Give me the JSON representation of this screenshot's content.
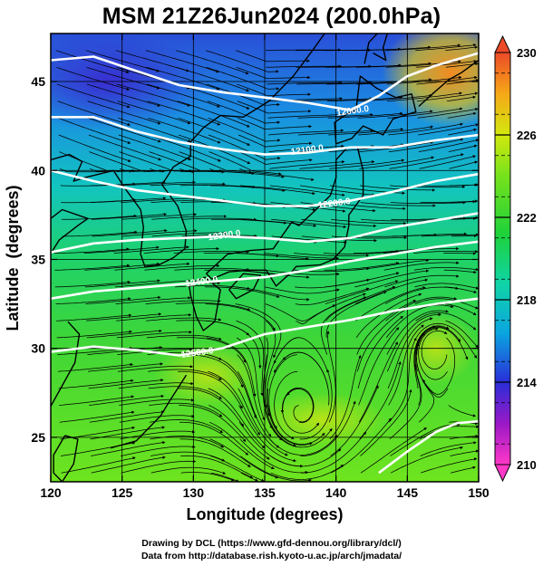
{
  "title": "MSM 21Z26Jun2024 (200.0hPa)",
  "x_axis": {
    "label": "Longitude (degrees)",
    "range": [
      120,
      150
    ],
    "ticks": [
      120,
      125,
      130,
      135,
      140,
      145,
      150
    ]
  },
  "y_axis": {
    "label": "Latitude  (degrees)",
    "range": [
      22.5,
      47.7
    ],
    "ticks": [
      25,
      30,
      35,
      40,
      45
    ]
  },
  "colorbar": {
    "range": [
      210,
      230
    ],
    "ticks": [
      210,
      214,
      218,
      222,
      226,
      230
    ],
    "colors": [
      "#ff38c8",
      "#9a18c6",
      "#2a2ed8",
      "#0aa6e0",
      "#10d4a6",
      "#1ed23a",
      "#76e21c",
      "#d2e80e",
      "#f6a818",
      "#ec4a28"
    ]
  },
  "contours": {
    "color": "#ffffff",
    "labels": [
      {
        "text": "12000.0",
        "lon": 141.2,
        "lat": 43.2
      },
      {
        "text": "12100.0",
        "lon": 138.0,
        "lat": 41.0
      },
      {
        "text": "12200.0",
        "lon": 139.9,
        "lat": 38.0
      },
      {
        "text": "12300.0",
        "lon": 132.2,
        "lat": 36.2
      },
      {
        "text": "12400.0",
        "lon": 130.6,
        "lat": 33.6
      },
      {
        "text": "12500.0",
        "lon": 130.3,
        "lat": 29.6
      }
    ],
    "lines": [
      [
        [
          120,
          46.2
        ],
        [
          123,
          46.4
        ],
        [
          126,
          45.6
        ],
        [
          129,
          44.8
        ],
        [
          132,
          44.4
        ],
        [
          135,
          44.1
        ],
        [
          138,
          43.8
        ],
        [
          141,
          43.4
        ],
        [
          143,
          44.2
        ],
        [
          145,
          45.3
        ],
        [
          147,
          45.9
        ],
        [
          150,
          46.6
        ]
      ],
      [
        [
          120,
          43.0
        ],
        [
          123,
          43.0
        ],
        [
          126,
          42.2
        ],
        [
          129,
          41.6
        ],
        [
          132,
          41.2
        ],
        [
          135,
          40.9
        ],
        [
          138,
          41.0
        ],
        [
          141,
          41.3
        ],
        [
          144,
          41.3
        ],
        [
          147,
          41.7
        ],
        [
          150,
          42.0
        ]
      ],
      [
        [
          120,
          40.0
        ],
        [
          123,
          39.4
        ],
        [
          126,
          38.9
        ],
        [
          129,
          38.6
        ],
        [
          132,
          38.3
        ],
        [
          135,
          38.0
        ],
        [
          138,
          38.0
        ],
        [
          141,
          38.3
        ],
        [
          144,
          38.8
        ],
        [
          147,
          39.4
        ],
        [
          150,
          39.8
        ]
      ],
      [
        [
          120,
          35.4
        ],
        [
          123,
          35.9
        ],
        [
          126,
          36.1
        ],
        [
          129,
          36.2
        ],
        [
          132,
          36.3
        ],
        [
          135,
          36.2
        ],
        [
          138,
          36.0
        ],
        [
          141,
          36.2
        ],
        [
          144,
          36.8
        ],
        [
          147,
          37.2
        ],
        [
          150,
          37.6
        ]
      ],
      [
        [
          120,
          32.8
        ],
        [
          123,
          33.2
        ],
        [
          126,
          33.4
        ],
        [
          129,
          33.6
        ],
        [
          132,
          33.8
        ],
        [
          135,
          34.0
        ],
        [
          138,
          34.4
        ],
        [
          141,
          34.9
        ],
        [
          144,
          35.3
        ],
        [
          147,
          35.7
        ],
        [
          150,
          36.0
        ]
      ],
      [
        [
          120,
          29.8
        ],
        [
          123,
          30.1
        ],
        [
          126,
          29.9
        ],
        [
          129,
          29.6
        ],
        [
          132,
          30.0
        ],
        [
          135,
          30.8
        ],
        [
          138,
          31.2
        ],
        [
          141,
          31.6
        ],
        [
          144,
          32.1
        ],
        [
          147,
          32.5
        ],
        [
          150,
          32.8
        ]
      ],
      [
        [
          143,
          23.0
        ],
        [
          145,
          24.2
        ],
        [
          147,
          25.3
        ],
        [
          148.5,
          25.8
        ],
        [
          150,
          25.9
        ]
      ]
    ]
  },
  "credits": [
    "Drawing by DCL (https://www.gfd-dennou.org/library/dcl/)",
    "Data from http://database.rish.kyoto-u.ac.jp/arch/jmadata/"
  ]
}
